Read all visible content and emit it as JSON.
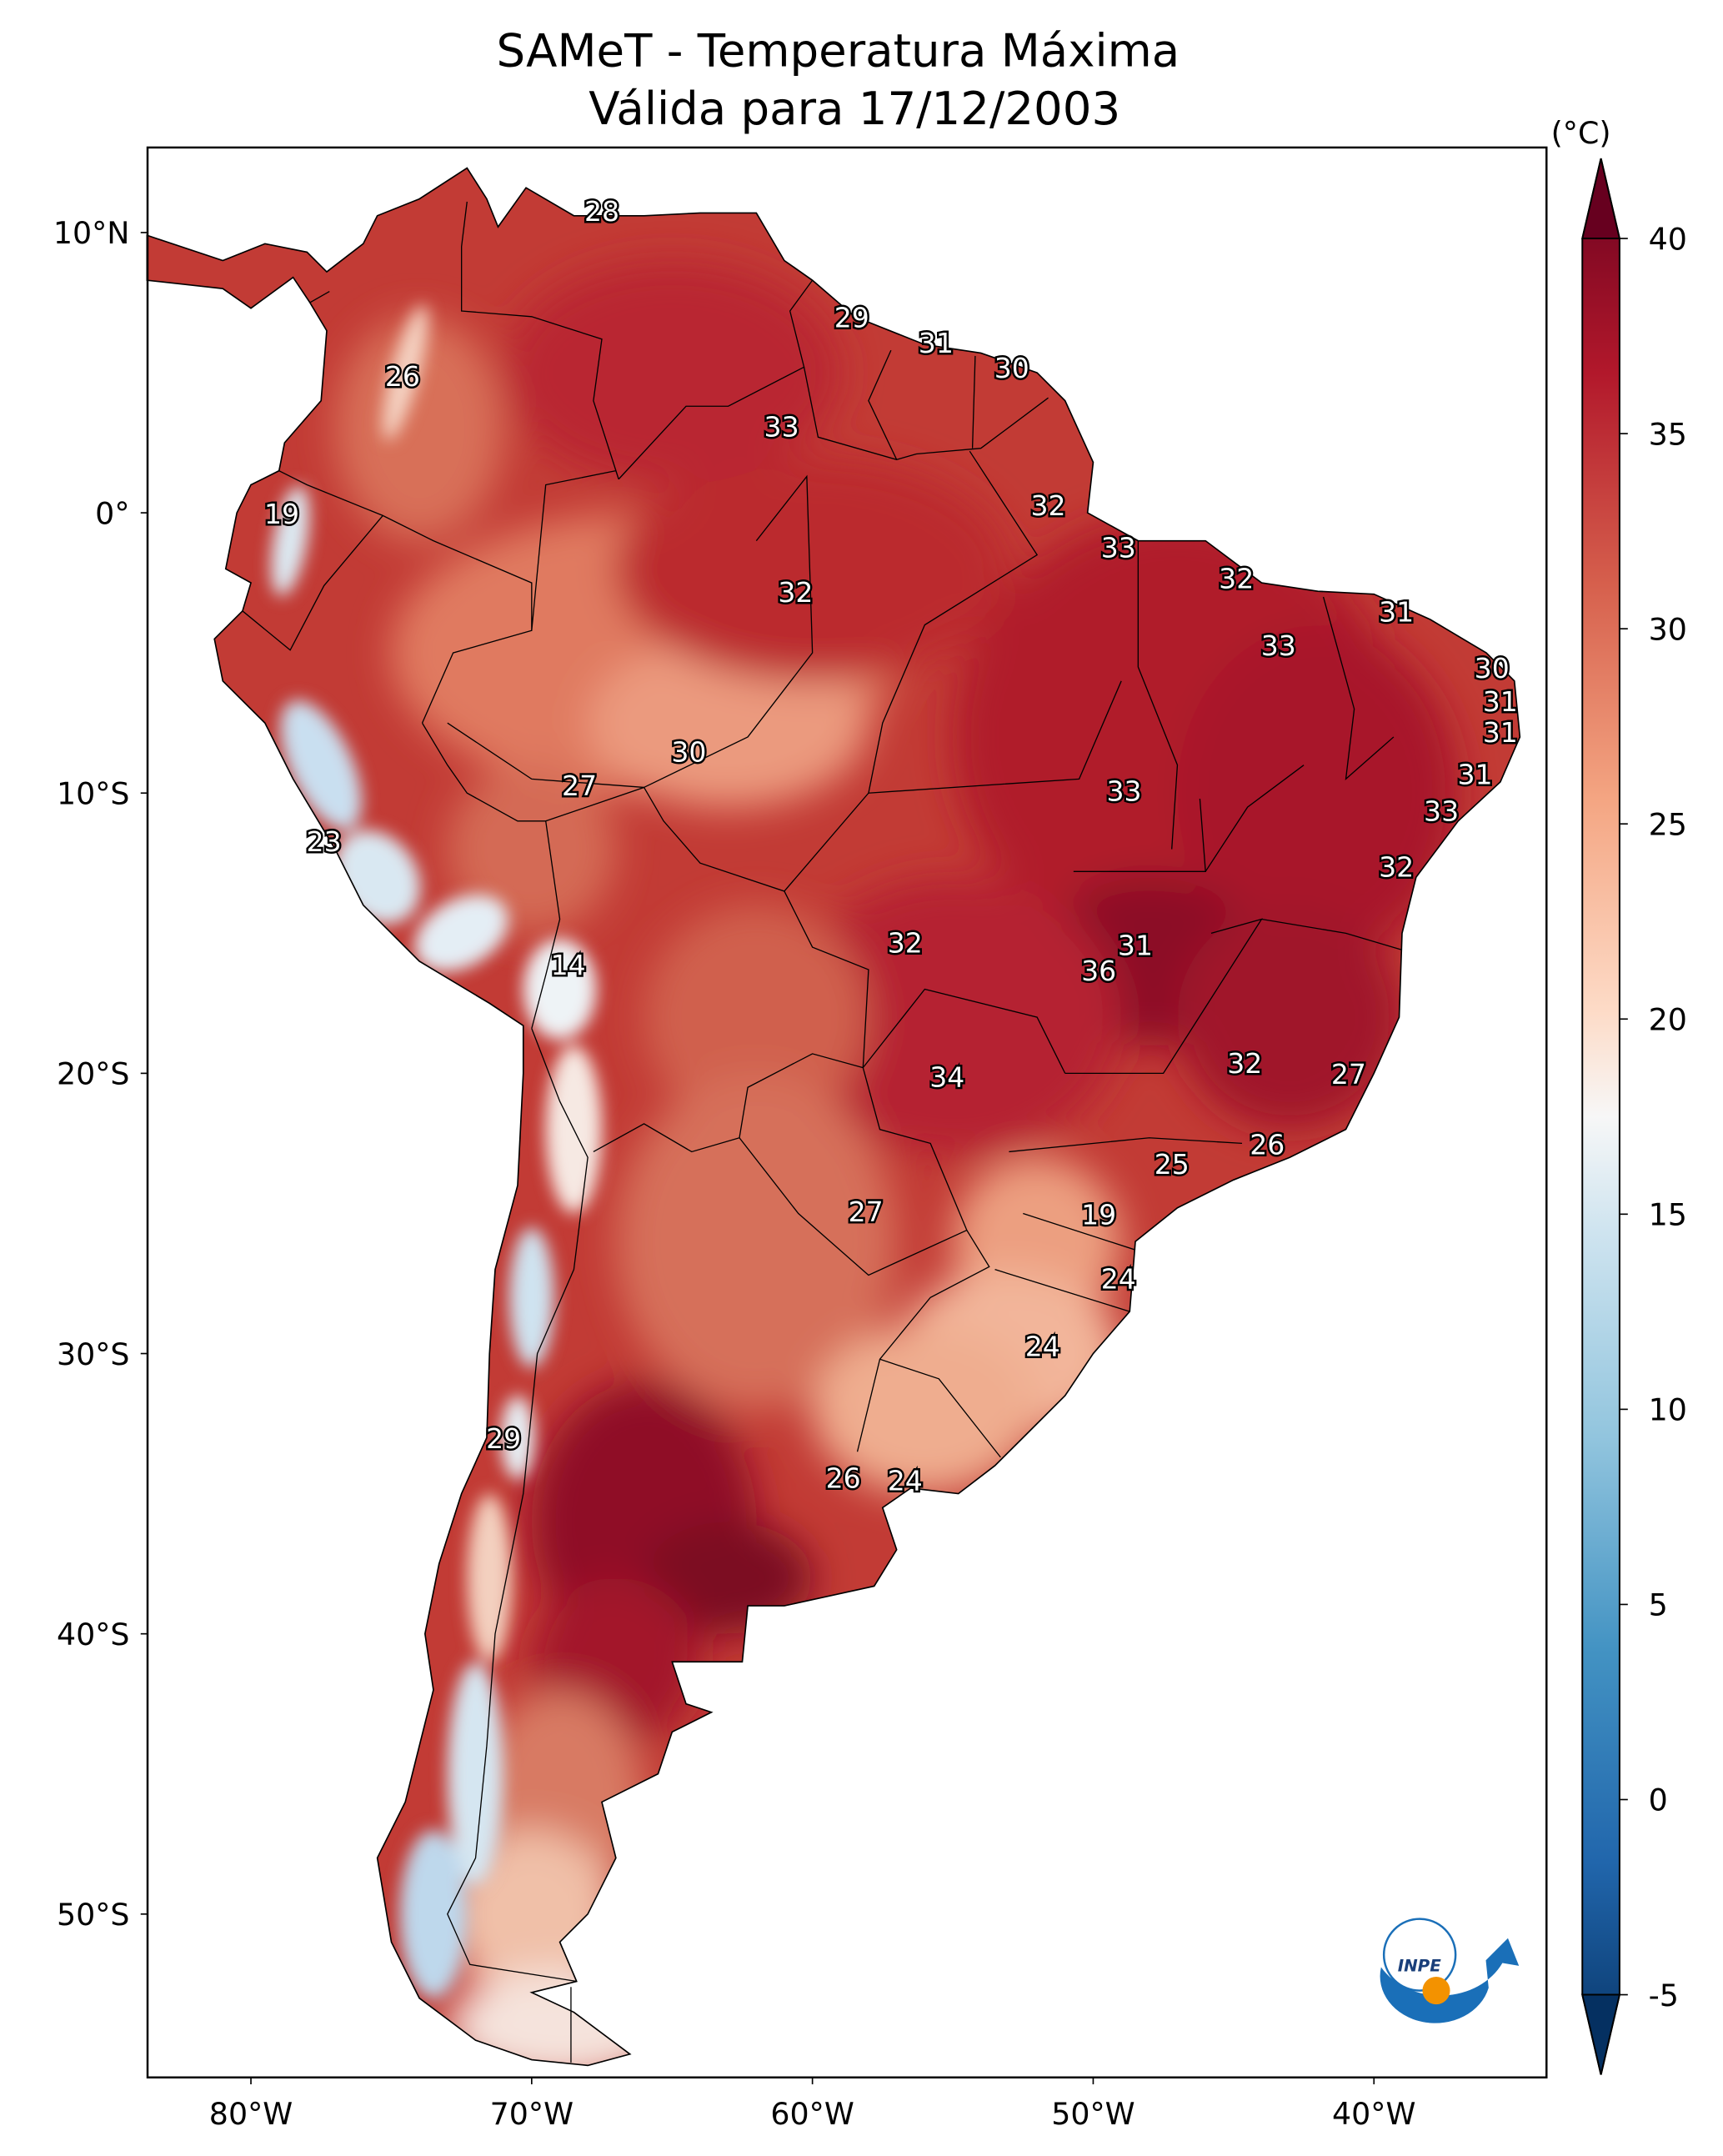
{
  "chart_data": {
    "type": "heatmap",
    "title_line1": "SAMeT - Temperatura Máxima",
    "title_line2": "Válida para 17/12/2003",
    "colorbar_label": "(°C)",
    "colorbar_range": [
      -5,
      40
    ],
    "colorbar_ticks": [
      "40",
      "35",
      "30",
      "25",
      "20",
      "15",
      "10",
      "5",
      "0",
      "-5"
    ],
    "colorbar_tick_values": [
      40,
      35,
      30,
      25,
      20,
      15,
      10,
      5,
      0,
      -5
    ],
    "colormap": "RdBu_r",
    "lon_range": [
      -83.7,
      -33.9
    ],
    "lat_range": [
      -55.8,
      13.0
    ],
    "lon_ticks": [
      {
        "v": -80,
        "label": "80°W"
      },
      {
        "v": -70,
        "label": "70°W"
      },
      {
        "v": -60,
        "label": "60°W"
      },
      {
        "v": -50,
        "label": "50°W"
      },
      {
        "v": -40,
        "label": "40°W"
      }
    ],
    "lat_ticks": [
      {
        "v": 10,
        "label": "10°N"
      },
      {
        "v": 0,
        "label": "0°"
      },
      {
        "v": -10,
        "label": "10°S"
      },
      {
        "v": -20,
        "label": "20°S"
      },
      {
        "v": -30,
        "label": "30°S"
      },
      {
        "v": -40,
        "label": "40°S"
      },
      {
        "v": -50,
        "label": "50°S"
      }
    ],
    "point_labels": [
      {
        "t": "28",
        "lon": -67.5,
        "lat": 10.7
      },
      {
        "t": "26",
        "lon": -74.6,
        "lat": 4.8
      },
      {
        "t": "29",
        "lon": -58.6,
        "lat": 6.9
      },
      {
        "t": "31",
        "lon": -55.6,
        "lat": 6.0
      },
      {
        "t": "30",
        "lon": -52.9,
        "lat": 5.1
      },
      {
        "t": "33",
        "lon": -61.1,
        "lat": 3.0
      },
      {
        "t": "19",
        "lon": -78.9,
        "lat": -0.1
      },
      {
        "t": "32",
        "lon": -51.6,
        "lat": 0.2
      },
      {
        "t": "33",
        "lon": -49.1,
        "lat": -1.3
      },
      {
        "t": "32",
        "lon": -60.6,
        "lat": -2.9
      },
      {
        "t": "32",
        "lon": -44.9,
        "lat": -2.4
      },
      {
        "t": "31",
        "lon": -39.2,
        "lat": -3.6
      },
      {
        "t": "33",
        "lon": -43.4,
        "lat": -4.8
      },
      {
        "t": "30",
        "lon": -35.8,
        "lat": -5.6
      },
      {
        "t": "31",
        "lon": -35.5,
        "lat": -6.8
      },
      {
        "t": "31",
        "lon": -35.5,
        "lat": -7.9
      },
      {
        "t": "30",
        "lon": -64.4,
        "lat": -8.6
      },
      {
        "t": "27",
        "lon": -68.3,
        "lat": -9.8
      },
      {
        "t": "31",
        "lon": -36.4,
        "lat": -9.4
      },
      {
        "t": "33",
        "lon": -48.9,
        "lat": -10.0
      },
      {
        "t": "33",
        "lon": -37.6,
        "lat": -10.7
      },
      {
        "t": "23",
        "lon": -77.4,
        "lat": -11.8
      },
      {
        "t": "32",
        "lon": -39.2,
        "lat": -12.7
      },
      {
        "t": "32",
        "lon": -56.7,
        "lat": -15.4
      },
      {
        "t": "31",
        "lon": -48.5,
        "lat": -15.5
      },
      {
        "t": "14",
        "lon": -68.7,
        "lat": -16.2
      },
      {
        "t": "36",
        "lon": -49.8,
        "lat": -16.4
      },
      {
        "t": "32",
        "lon": -44.6,
        "lat": -19.7
      },
      {
        "t": "34",
        "lon": -55.2,
        "lat": -20.2
      },
      {
        "t": "27",
        "lon": -40.9,
        "lat": -20.1
      },
      {
        "t": "26",
        "lon": -43.8,
        "lat": -22.6
      },
      {
        "t": "25",
        "lon": -47.2,
        "lat": -23.3
      },
      {
        "t": "27",
        "lon": -58.1,
        "lat": -25.0
      },
      {
        "t": "19",
        "lon": -49.8,
        "lat": -25.1
      },
      {
        "t": "24",
        "lon": -49.1,
        "lat": -27.4
      },
      {
        "t": "24",
        "lon": -51.8,
        "lat": -29.8
      },
      {
        "t": "29",
        "lon": -71.0,
        "lat": -33.1
      },
      {
        "t": "26",
        "lon": -58.9,
        "lat": -34.5
      },
      {
        "t": "24",
        "lon": -56.7,
        "lat": -34.6
      }
    ]
  },
  "logo": {
    "text": "INPE"
  }
}
